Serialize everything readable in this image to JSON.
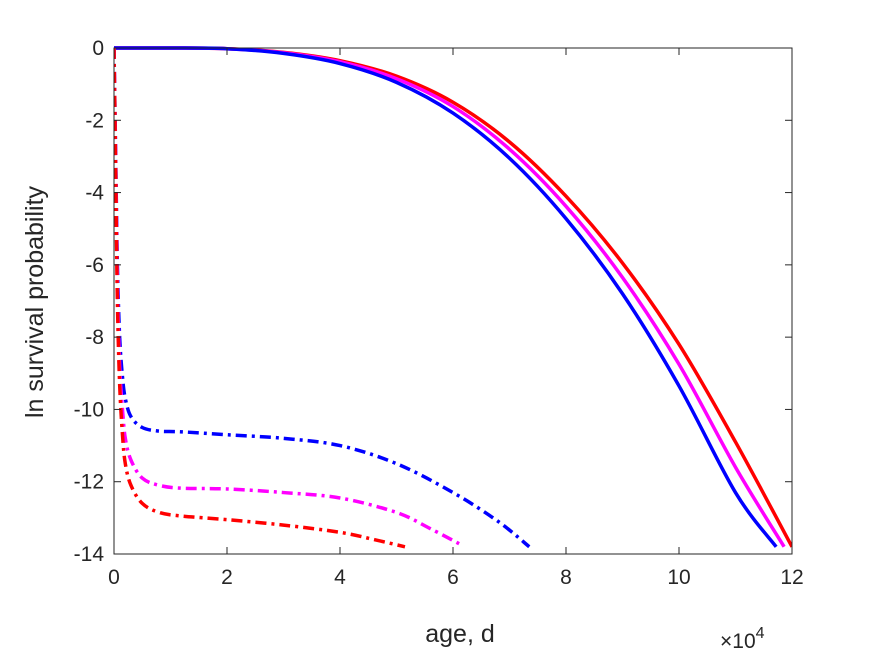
{
  "chart_data": {
    "type": "line",
    "xlabel": "age, d",
    "ylabel": "ln survival probability",
    "x_multiplier_label": "×10",
    "x_multiplier_exponent": "4",
    "xlim": [
      0,
      120000
    ],
    "ylim": [
      -14,
      0
    ],
    "x_ticks": [
      0,
      20000,
      40000,
      60000,
      80000,
      100000,
      120000
    ],
    "x_tick_labels": [
      "0",
      "2",
      "4",
      "6",
      "8",
      "10",
      "12"
    ],
    "y_ticks": [
      0,
      -2,
      -4,
      -6,
      -8,
      -10,
      -12,
      -14
    ],
    "y_tick_labels": [
      "0",
      "-2",
      "-4",
      "-6",
      "-8",
      "-10",
      "-12",
      "-14"
    ],
    "grid": false,
    "series": [
      {
        "color": "#ff0000",
        "style": "solid",
        "x": [
          0,
          10000,
          20000,
          30000,
          40000,
          50000,
          60000,
          70000,
          80000,
          90000,
          100000,
          110000,
          120000
        ],
        "y": [
          0,
          0,
          -0.02,
          -0.12,
          -0.35,
          -0.78,
          -1.5,
          -2.6,
          -4.1,
          -5.95,
          -8.2,
          -10.9,
          -13.8
        ]
      },
      {
        "color": "#ff00ff",
        "style": "solid",
        "x": [
          0,
          10000,
          20000,
          30000,
          40000,
          50000,
          60000,
          70000,
          80000,
          90000,
          100000,
          110000,
          118600
        ],
        "y": [
          0,
          0,
          -0.02,
          -0.13,
          -0.38,
          -0.85,
          -1.62,
          -2.8,
          -4.38,
          -6.35,
          -8.75,
          -11.6,
          -13.8
        ]
      },
      {
        "color": "#0000ff",
        "style": "solid",
        "x": [
          0,
          10000,
          20000,
          30000,
          40000,
          50000,
          60000,
          70000,
          80000,
          90000,
          100000,
          110000,
          117200
        ],
        "y": [
          0,
          0,
          -0.02,
          -0.15,
          -0.43,
          -0.95,
          -1.8,
          -3.05,
          -4.72,
          -6.8,
          -9.35,
          -12.3,
          -13.8
        ]
      },
      {
        "color": "#0000ff",
        "style": "dashdot",
        "x": [
          0,
          300,
          600,
          1000,
          1500,
          2000,
          3000,
          5000,
          8000,
          12000,
          20000,
          30000,
          40000,
          50000,
          60000,
          68000,
          73500
        ],
        "y": [
          0,
          -3,
          -6,
          -8,
          -9.1,
          -9.7,
          -10.2,
          -10.5,
          -10.6,
          -10.62,
          -10.7,
          -10.8,
          -11.0,
          -11.5,
          -12.3,
          -13.1,
          -13.8
        ]
      },
      {
        "color": "#ff00ff",
        "style": "dashdot",
        "x": [
          0,
          300,
          600,
          1000,
          1500,
          2000,
          3000,
          5000,
          8000,
          12000,
          20000,
          30000,
          40000,
          50000,
          56000,
          61500
        ],
        "y": [
          0,
          -3.2,
          -6.5,
          -8.8,
          -10.0,
          -10.8,
          -11.4,
          -11.9,
          -12.1,
          -12.18,
          -12.2,
          -12.3,
          -12.45,
          -12.85,
          -13.3,
          -13.75
        ]
      },
      {
        "color": "#ff0000",
        "style": "dashdot",
        "x": [
          0,
          300,
          600,
          1000,
          1500,
          2000,
          3000,
          5000,
          8000,
          12000,
          20000,
          30000,
          40000,
          46000,
          51500
        ],
        "y": [
          0,
          -3.5,
          -7,
          -9.3,
          -10.7,
          -11.5,
          -12.1,
          -12.6,
          -12.85,
          -12.95,
          -13.05,
          -13.2,
          -13.4,
          -13.6,
          -13.8
        ]
      }
    ]
  }
}
